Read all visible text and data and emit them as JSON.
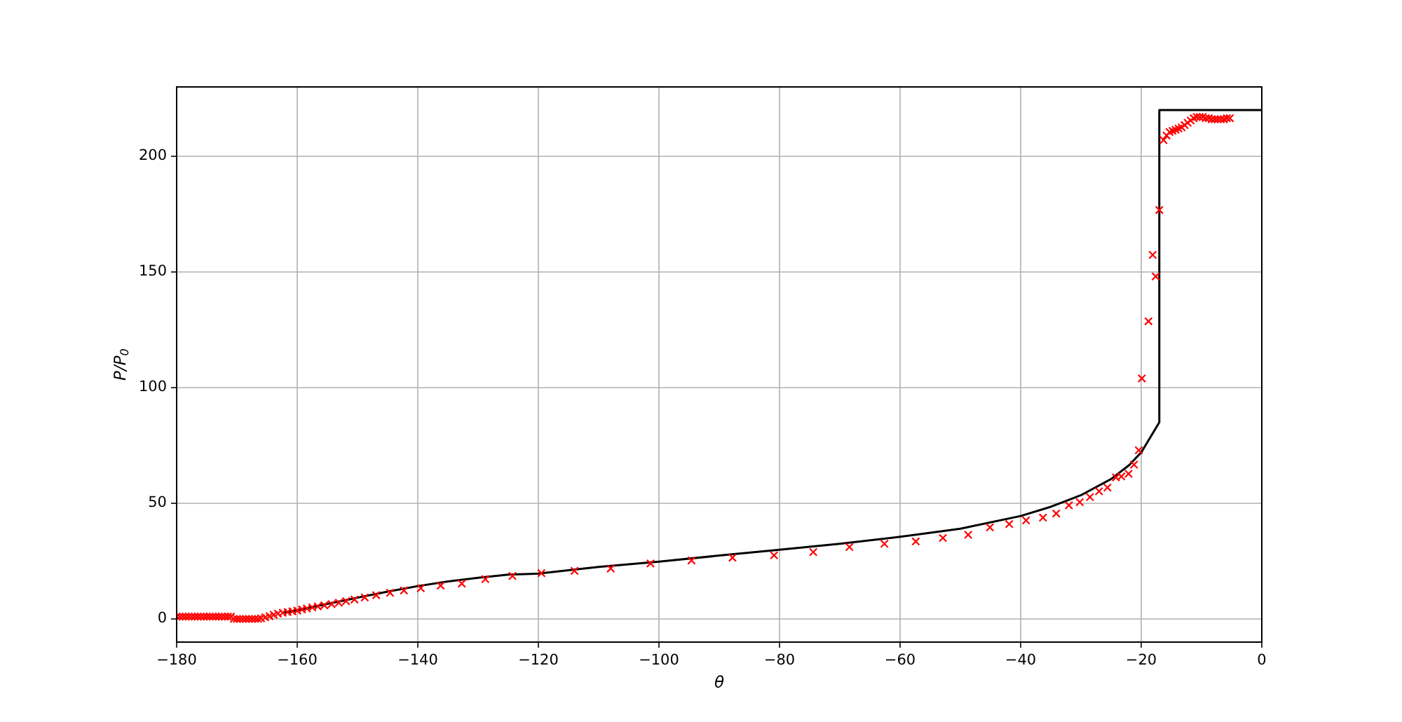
{
  "chart_data": {
    "type": "scatter",
    "xlabel": "θ",
    "ylabel": "P/P$_{0}$",
    "xlim": [
      -180,
      0
    ],
    "ylim": [
      -10,
      230
    ],
    "xticks": [
      -180,
      -160,
      -140,
      -120,
      -100,
      -80,
      -60,
      -40,
      -20,
      0
    ],
    "yticks": [
      0,
      50,
      100,
      150,
      200
    ],
    "grid": true,
    "series": [
      {
        "type": "line",
        "color": "#000000",
        "marker": "none",
        "line_style": "solid",
        "x": [
          -162,
          -160,
          -155,
          -150,
          -145,
          -140,
          -135,
          -130,
          -125,
          -120,
          -110,
          -100,
          -90,
          -80,
          -70,
          -60,
          -50,
          -40,
          -35,
          -30,
          -25,
          -22,
          -20,
          -18.5,
          -17,
          -17,
          0
        ],
        "values": [
          2.8,
          3.8,
          6.5,
          9.2,
          11.8,
          14.2,
          16.2,
          17.8,
          19.2,
          19.6,
          22.5,
          24.8,
          27.4,
          29.9,
          32.5,
          35.5,
          39,
          44.5,
          48.5,
          53.5,
          60.5,
          66.5,
          72,
          78.5,
          85,
          220,
          220
        ]
      },
      {
        "type": "scatter",
        "color": "#ff0000",
        "marker": "cross",
        "x": [
          -180,
          -179.5,
          -179,
          -178.5,
          -178,
          -177.5,
          -177,
          -176.5,
          -176,
          -175.5,
          -175,
          -174.5,
          -174,
          -173.5,
          -173,
          -172.5,
          -172,
          -171.5,
          -171,
          -170.5,
          -170,
          -169.5,
          -169,
          -168.5,
          -168,
          -167.5,
          -167,
          -166.5,
          -166,
          -165.3,
          -164.6,
          -163.9,
          -163.2,
          -162.4,
          -161.6,
          -160.8,
          -160,
          -159.2,
          -158.4,
          -157.5,
          -156.6,
          -155.5,
          -154.3,
          -153.1,
          -151.9,
          -150.5,
          -148.8,
          -146.9,
          -144.6,
          -142.3,
          -139.5,
          -136.2,
          -132.7,
          -128.8,
          -124.3,
          -119.5,
          -114,
          -108,
          -101.4,
          -94.6,
          -87.8,
          -80.9,
          -74.4,
          -68.4,
          -62.6,
          -57.4,
          -52.9,
          -48.7,
          -45.1,
          -41.9,
          -39.1,
          -36.3,
          -34.1,
          -32,
          -30.2,
          -28.5,
          -27,
          -25.6,
          -24.2,
          -23.3,
          -22.1,
          -21.2,
          -20.4,
          -19.9,
          -18.8,
          -18.1,
          -17.6,
          -17,
          -16.3,
          -15.8,
          -15.3,
          -14.8,
          -14.3,
          -13.8,
          -13.3,
          -12.8,
          -12.3,
          -11.8,
          -11.3,
          -10.8,
          -10.3,
          -9.8,
          -9.3,
          -8.8,
          -8.3,
          -7.8,
          -7.3,
          -6.8,
          -6.3,
          -5.8,
          -5.3
        ],
        "values": [
          1,
          1,
          1,
          1,
          1,
          1,
          1,
          1,
          1,
          1,
          1,
          1,
          1,
          1,
          1,
          1,
          1,
          1,
          1,
          0,
          0,
          0,
          0,
          0,
          0,
          0,
          0,
          0,
          0.3,
          0.7,
          1.2,
          1.8,
          2.3,
          2.7,
          3,
          3.3,
          3.6,
          4.1,
          4.5,
          5,
          5.4,
          5.9,
          6.4,
          7,
          7.7,
          8.4,
          9.3,
          10.3,
          11.3,
          12.3,
          13.3,
          14.4,
          15.3,
          17.2,
          18.6,
          19.8,
          20.8,
          21.8,
          24,
          25.3,
          26.5,
          27.5,
          28.9,
          31.1,
          32.5,
          33.5,
          35,
          36.4,
          39.6,
          41,
          42.6,
          43.8,
          45.6,
          49.1,
          50.5,
          52.7,
          55.2,
          56.8,
          61.2,
          61.6,
          62.8,
          66.7,
          72.9,
          104,
          128.7,
          157.4,
          148.1,
          176.8,
          207,
          209,
          210.5,
          211,
          211.5,
          212,
          212.5,
          213.5,
          214.5,
          215.5,
          216.5,
          217,
          217,
          217,
          216.5,
          216.5,
          216,
          216,
          216,
          216,
          216,
          216.5,
          216.5
        ]
      }
    ]
  }
}
